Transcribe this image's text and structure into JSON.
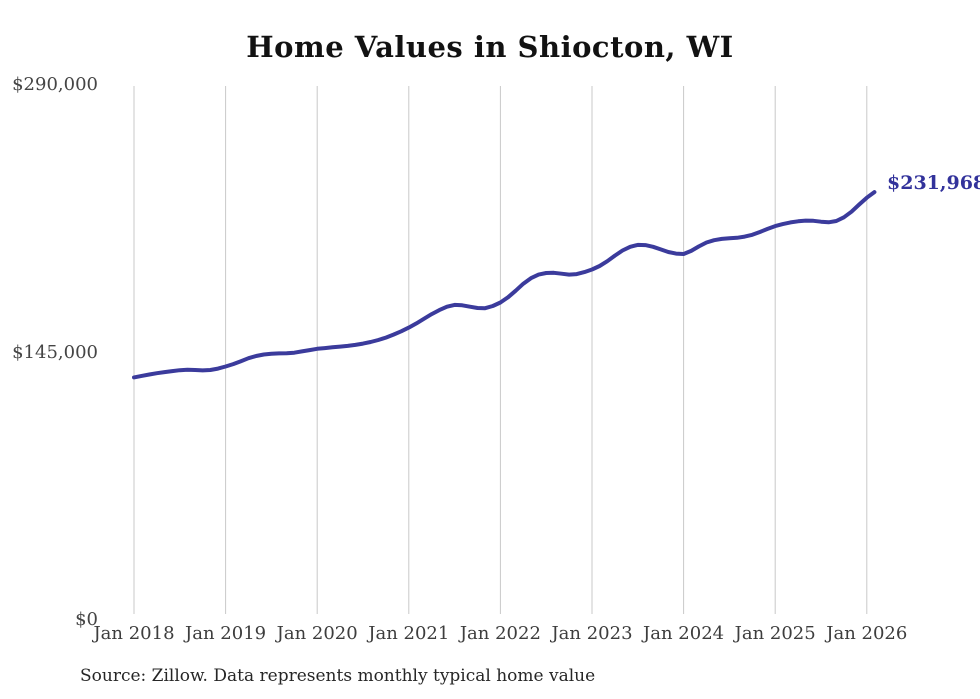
{
  "chart_data": {
    "type": "line",
    "title": "Home Values in Shiocton, WI",
    "xlabel": "",
    "ylabel": "",
    "ylim": [
      0,
      290000
    ],
    "grid": "vertical-only",
    "grid_color": "#c9c9c9",
    "line_color": "#3b3b9c",
    "end_label": "$231,968",
    "end_label_color": "#32329b",
    "y_ticks": [
      {
        "label": "$290,000",
        "value": 290000
      },
      {
        "label": "$145,000",
        "value": 145000
      },
      {
        "label": "$0",
        "value": 0
      }
    ],
    "x_tick_labels": [
      "Jan 2018",
      "Jan 2019",
      "Jan 2020",
      "Jan 2021",
      "Jan 2022",
      "Jan 2023",
      "Jan 2024",
      "Jan 2025",
      "Jan 2026"
    ],
    "x": [
      "Jan 2018",
      "Feb 2018",
      "Mar 2018",
      "Apr 2018",
      "May 2018",
      "Jun 2018",
      "Jul 2018",
      "Aug 2018",
      "Sep 2018",
      "Oct 2018",
      "Nov 2018",
      "Dec 2018",
      "Jan 2019",
      "Feb 2019",
      "Mar 2019",
      "Apr 2019",
      "May 2019",
      "Jun 2019",
      "Jul 2019",
      "Aug 2019",
      "Sep 2019",
      "Oct 2019",
      "Nov 2019",
      "Dec 2019",
      "Jan 2020",
      "Feb 2020",
      "Mar 2020",
      "Apr 2020",
      "May 2020",
      "Jun 2020",
      "Jul 2020",
      "Aug 2020",
      "Sep 2020",
      "Oct 2020",
      "Nov 2020",
      "Dec 2020",
      "Jan 2021",
      "Feb 2021",
      "Mar 2021",
      "Apr 2021",
      "May 2021",
      "Jun 2021",
      "Jul 2021",
      "Aug 2021",
      "Sep 2021",
      "Oct 2021",
      "Nov 2021",
      "Dec 2021",
      "Jan 2022",
      "Feb 2022",
      "Mar 2022",
      "Apr 2022",
      "May 2022",
      "Jun 2022",
      "Jul 2022",
      "Aug 2022",
      "Sep 2022",
      "Oct 2022",
      "Nov 2022",
      "Dec 2022",
      "Jan 2023",
      "Feb 2023",
      "Mar 2023",
      "Apr 2023",
      "May 2023",
      "Jun 2023",
      "Jul 2023",
      "Aug 2023",
      "Sep 2023",
      "Oct 2023",
      "Nov 2023",
      "Dec 2023",
      "Jan 2024",
      "Feb 2024",
      "Mar 2024",
      "Apr 2024",
      "May 2024",
      "Jun 2024",
      "Jul 2024",
      "Aug 2024",
      "Sep 2024",
      "Oct 2024",
      "Nov 2024",
      "Dec 2024",
      "Jan 2025",
      "Feb 2025",
      "Mar 2025",
      "Apr 2025",
      "May 2025",
      "Jun 2025",
      "Jul 2025",
      "Aug 2025",
      "Sep 2025",
      "Oct 2025",
      "Nov 2025",
      "Dec 2025",
      "Jan 2026",
      "Feb 2026"
    ],
    "values": [
      131500,
      132300,
      133100,
      133800,
      134400,
      134900,
      135400,
      135600,
      135500,
      135300,
      135500,
      136300,
      137400,
      138700,
      140300,
      141900,
      143100,
      143900,
      144300,
      144500,
      144600,
      144900,
      145600,
      146300,
      147000,
      147400,
      147800,
      148200,
      148600,
      149100,
      149800,
      150700,
      151800,
      153100,
      154700,
      156500,
      158500,
      160800,
      163300,
      165800,
      168000,
      169800,
      170800,
      170600,
      169800,
      169100,
      169000,
      170200,
      172100,
      174900,
      178500,
      182300,
      185300,
      187200,
      188100,
      188200,
      187700,
      187200,
      187500,
      188600,
      190000,
      191900,
      194500,
      197500,
      200300,
      202300,
      203300,
      203200,
      202300,
      200900,
      199500,
      198600,
      198400,
      200100,
      202500,
      204600,
      205900,
      206600,
      206900,
      207200,
      207800,
      208800,
      210300,
      212000,
      213500,
      214600,
      215500,
      216100,
      216500,
      216400,
      215900,
      215600,
      216300,
      218300,
      221300,
      225200,
      228900,
      231968
    ],
    "source_note": "Source: Zillow. Data represents monthly typical home value"
  }
}
